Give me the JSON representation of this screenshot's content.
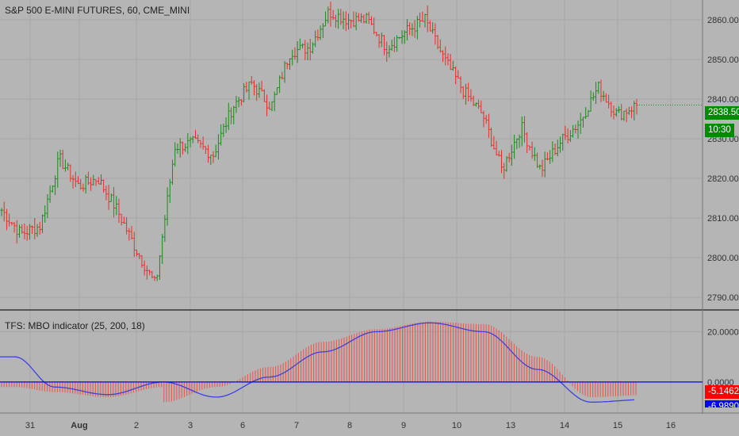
{
  "header": {
    "symbol_title": "S&P 500 E-MINI FUTURES, 60, CME_MINI",
    "indicator_title": "TFS: MBO indicator (25, 200, 18)"
  },
  "labels": {
    "last_price": "2838.50",
    "countdown": "10:30",
    "mbo_value": "-5.1462",
    "signal_value": "-6.9890"
  },
  "colors": {
    "background": "#b5b5b5",
    "grid": "#a6a6a6",
    "up_bar": "#1a8c1a",
    "down_bar": "#ee2b2b",
    "histogram": "#e8554d",
    "signal_line": "#3f3fe0",
    "zero_line": "#0000ff",
    "price_label": "#008a00",
    "mbo_label": "#ff0000",
    "signal_label": "#0000ff"
  },
  "chart_data": [
    {
      "type": "candlestick",
      "title": "S&P 500 E-MINI FUTURES, 60, CME_MINI",
      "y_ticks": [
        "2790.00",
        "2800.00",
        "2810.00",
        "2820.00",
        "2830.00",
        "2840.00",
        "2850.00",
        "2860.00"
      ],
      "ylim": [
        2787,
        2865
      ],
      "x_ticks": [
        "31",
        "Aug",
        "2",
        "3",
        "6",
        "7",
        "8",
        "9",
        "10",
        "13",
        "14",
        "15",
        "16"
      ],
      "close_series": [
        {
          "date": "Jul 30",
          "close": 2812
        },
        {
          "date": "Jul 31",
          "close": 2806
        },
        {
          "date": "Jul 31",
          "close": 2808
        },
        {
          "date": "Aug 1",
          "close": 2825
        },
        {
          "date": "Aug 1",
          "close": 2818
        },
        {
          "date": "Aug 2",
          "close": 2820
        },
        {
          "date": "Aug 2",
          "close": 2812
        },
        {
          "date": "Aug 2",
          "close": 2802
        },
        {
          "date": "Aug 2",
          "close": 2793
        },
        {
          "date": "Aug 3",
          "close": 2828
        },
        {
          "date": "Aug 3",
          "close": 2829
        },
        {
          "date": "Aug 3",
          "close": 2826
        },
        {
          "date": "Aug 6",
          "close": 2838
        },
        {
          "date": "Aug 6",
          "close": 2844
        },
        {
          "date": "Aug 6",
          "close": 2838
        },
        {
          "date": "Aug 7",
          "close": 2852
        },
        {
          "date": "Aug 7",
          "close": 2853
        },
        {
          "date": "Aug 8",
          "close": 2862
        },
        {
          "date": "Aug 8",
          "close": 2860
        },
        {
          "date": "Aug 9",
          "close": 2860
        },
        {
          "date": "Aug 9",
          "close": 2853
        },
        {
          "date": "Aug 9",
          "close": 2857
        },
        {
          "date": "Aug 10",
          "close": 2860
        },
        {
          "date": "Aug 10",
          "close": 2850
        },
        {
          "date": "Aug 10",
          "close": 2842
        },
        {
          "date": "Aug 13",
          "close": 2836
        },
        {
          "date": "Aug 13",
          "close": 2822
        },
        {
          "date": "Aug 13",
          "close": 2833
        },
        {
          "date": "Aug 14",
          "close": 2822
        },
        {
          "date": "Aug 14",
          "close": 2829
        },
        {
          "date": "Aug 14",
          "close": 2834
        },
        {
          "date": "Aug 15",
          "close": 2843
        },
        {
          "date": "Aug 15",
          "close": 2836
        },
        {
          "date": "Aug 15",
          "close": 2838.5
        }
      ]
    },
    {
      "type": "bar",
      "title": "TFS: MBO indicator (25, 200, 18)",
      "y_ticks": [
        "0.0000",
        "20.0000"
      ],
      "ylim": [
        -12,
        28
      ],
      "series": [
        {
          "name": "MBO",
          "values_by_date": [
            {
              "date": "Jul 30",
              "value": -2
            },
            {
              "date": "Jul 31",
              "value": -4
            },
            {
              "date": "Aug 1",
              "value": -6
            },
            {
              "date": "Aug 2",
              "value": -2
            },
            {
              "date": "Aug 2",
              "value": -8
            },
            {
              "date": "Aug 3",
              "value": -2
            },
            {
              "date": "Aug 6",
              "value": 6
            },
            {
              "date": "Aug 7",
              "value": 16
            },
            {
              "date": "Aug 8",
              "value": 21
            },
            {
              "date": "Aug 9",
              "value": 24
            },
            {
              "date": "Aug 10",
              "value": 23
            },
            {
              "date": "Aug 13",
              "value": 10
            },
            {
              "date": "Aug 14",
              "value": -6
            },
            {
              "date": "Aug 15",
              "value": -5.1462
            }
          ]
        },
        {
          "name": "Signal",
          "values_by_date": [
            {
              "date": "Jul 30",
              "value": 10
            },
            {
              "date": "Jul 31",
              "value": -2
            },
            {
              "date": "Aug 1",
              "value": -5
            },
            {
              "date": "Aug 2",
              "value": 0
            },
            {
              "date": "Aug 3",
              "value": -6
            },
            {
              "date": "Aug 6",
              "value": 2
            },
            {
              "date": "Aug 7",
              "value": 12
            },
            {
              "date": "Aug 8",
              "value": 20
            },
            {
              "date": "Aug 9",
              "value": 23.5
            },
            {
              "date": "Aug 10",
              "value": 20
            },
            {
              "date": "Aug 13",
              "value": 5
            },
            {
              "date": "Aug 14",
              "value": -8
            },
            {
              "date": "Aug 15",
              "value": -6.989
            }
          ]
        }
      ]
    }
  ]
}
